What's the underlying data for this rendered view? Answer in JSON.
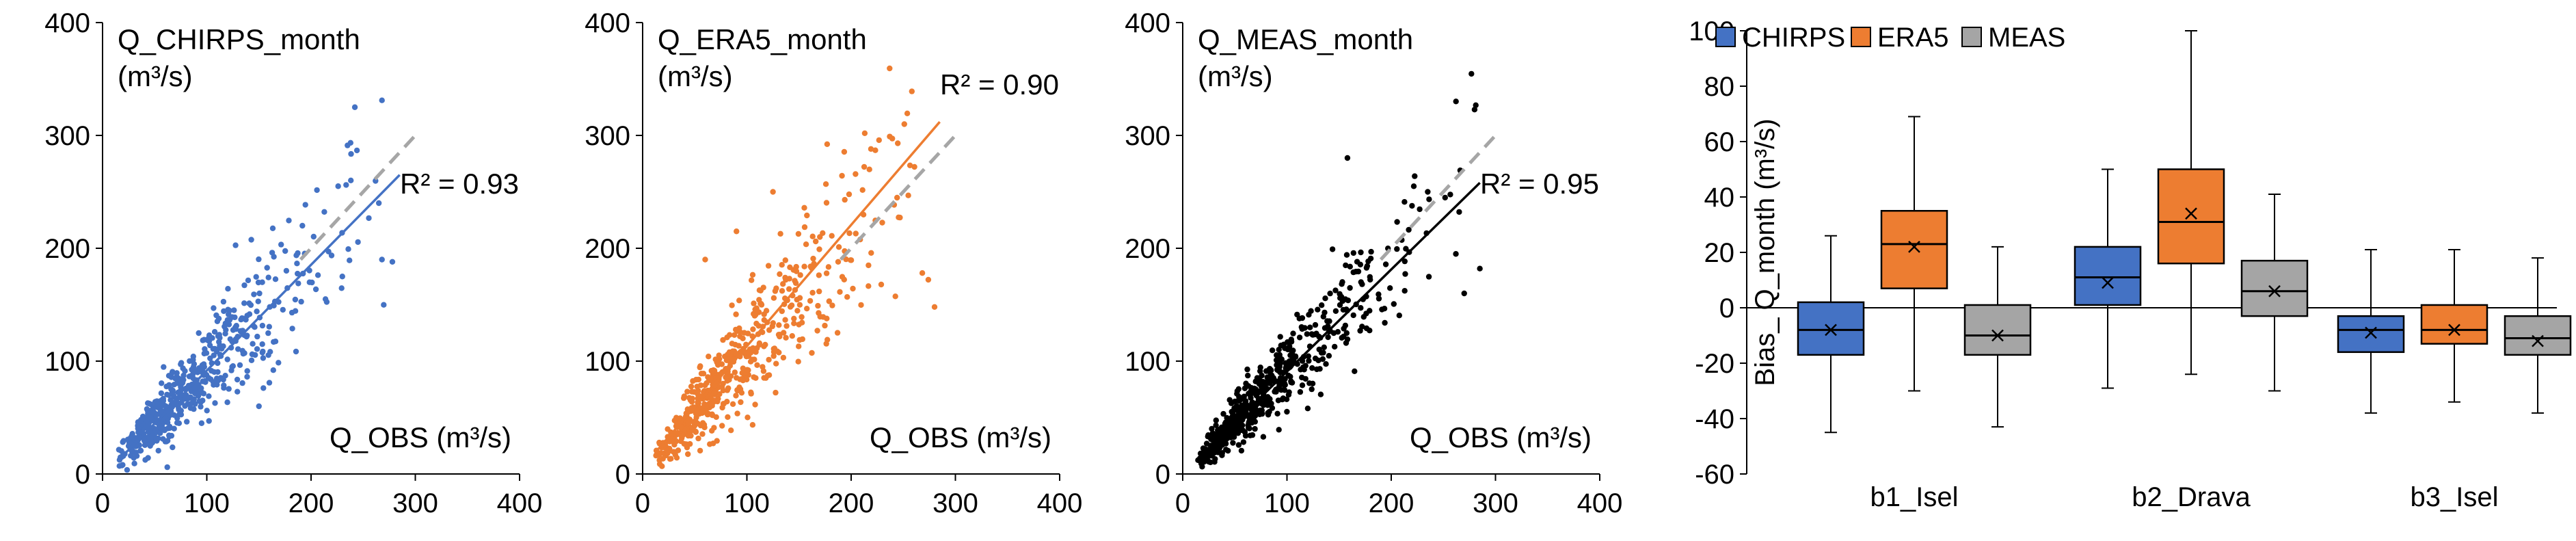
{
  "chart_data": [
    {
      "type": "scatter",
      "title": "Q_CHIRPS_month",
      "ylabel_unit": "(m³/s)",
      "xlabel": "Q_OBS (m³/s)",
      "xlim": [
        0,
        400
      ],
      "ylim": [
        0,
        400
      ],
      "xticks": [
        "0",
        "100",
        "200",
        "300",
        "400"
      ],
      "yticks": [
        "0",
        "100",
        "200",
        "300",
        "400"
      ],
      "color": "#4472C4",
      "r2_label": "R² = 0.93",
      "trend": {
        "x": [
          15,
          285
        ],
        "y": [
          12,
          265
        ]
      },
      "one_to_one": {
        "x": [
          190,
          300
        ],
        "y": [
          190,
          300
        ]
      },
      "cloud": {
        "n": 560,
        "seed": 11,
        "shape": 1.9,
        "scale": 42,
        "cap": 285,
        "slope": 0.92,
        "noise_base": 3,
        "noise_rel": 0.17
      },
      "outliers": {
        "x": [
          242,
          268,
          278,
          230,
          226,
          265,
          150,
          95
        ],
        "y": [
          325,
          190,
          188,
          175,
          255,
          240,
          60,
          45
        ]
      }
    },
    {
      "type": "scatter",
      "title": "Q_ERA5_month",
      "ylabel_unit": "(m³/s)",
      "xlabel": "Q_OBS (m³/s)",
      "xlim": [
        0,
        400
      ],
      "ylim": [
        0,
        400
      ],
      "xticks": [
        "0",
        "100",
        "200",
        "300",
        "400"
      ],
      "yticks": [
        "0",
        "100",
        "200",
        "300",
        "400"
      ],
      "color": "#ED7D31",
      "r2_label": "R² = 0.90",
      "trend": {
        "x": [
          15,
          285
        ],
        "y": [
          22,
          312
        ]
      },
      "one_to_one": {
        "x": [
          190,
          300
        ],
        "y": [
          190,
          300
        ]
      },
      "cloud": {
        "n": 560,
        "seed": 23,
        "shape": 1.9,
        "scale": 42,
        "cap": 285,
        "slope": 1.07,
        "noise_base": 4,
        "noise_rel": 0.2
      },
      "outliers": {
        "x": [
          251,
          237,
          219,
          125,
          170,
          280,
          90,
          60
        ],
        "y": [
          310,
          299,
          288,
          250,
          210,
          148,
          215,
          190
        ]
      }
    },
    {
      "type": "scatter",
      "title": "Q_MEAS_month",
      "ylabel_unit": "(m³/s)",
      "xlabel": "Q_OBS (m³/s)",
      "xlim": [
        0,
        400
      ],
      "ylim": [
        0,
        400
      ],
      "xticks": [
        "0",
        "100",
        "200",
        "300",
        "400"
      ],
      "yticks": [
        "0",
        "100",
        "200",
        "300",
        "400"
      ],
      "color": "#000000",
      "r2_label": "R² = 0.95",
      "trend": {
        "x": [
          15,
          285
        ],
        "y": [
          14,
          258
        ]
      },
      "one_to_one": {
        "x": [
          190,
          300
        ],
        "y": [
          190,
          300
        ]
      },
      "cloud": {
        "n": 560,
        "seed": 37,
        "shape": 1.9,
        "scale": 42,
        "cap": 285,
        "slope": 0.93,
        "noise_base": 3,
        "noise_rel": 0.14
      },
      "outliers": {
        "x": [
          158,
          262,
          270,
          235,
          285
        ],
        "y": [
          280,
          195,
          160,
          250,
          182
        ]
      }
    },
    {
      "type": "boxplot",
      "ylabel": "Bias_ Q_month (m³/s)",
      "ylim": [
        -60,
        100
      ],
      "yticks": [
        "-60",
        "-40",
        "-20",
        "0",
        "20",
        "40",
        "60",
        "80",
        "100"
      ],
      "categories": [
        "b1_Isel",
        "b2_Drava",
        "b3_Isel"
      ],
      "series": [
        {
          "name": "CHIRPS",
          "color": "#4472C4",
          "boxes": [
            {
              "min": -45,
              "q1": -17,
              "median": -8,
              "q3": 2,
              "max": 26,
              "mean": -8
            },
            {
              "min": -29,
              "q1": 1,
              "median": 11,
              "q3": 22,
              "max": 50,
              "mean": 9
            },
            {
              "min": -38,
              "q1": -16,
              "median": -8,
              "q3": -3,
              "max": 21,
              "mean": -9
            }
          ]
        },
        {
          "name": "ERA5",
          "color": "#ED7D31",
          "boxes": [
            {
              "min": -30,
              "q1": 7,
              "median": 23,
              "q3": 35,
              "max": 69,
              "mean": 22
            },
            {
              "min": -24,
              "q1": 16,
              "median": 31,
              "q3": 50,
              "max": 100,
              "mean": 34
            },
            {
              "min": -34,
              "q1": -13,
              "median": -8,
              "q3": 1,
              "max": 21,
              "mean": -8
            }
          ]
        },
        {
          "name": "MEAS",
          "color": "#A5A5A5",
          "boxes": [
            {
              "min": -43,
              "q1": -17,
              "median": -10,
              "q3": 1,
              "max": 22,
              "mean": -10
            },
            {
              "min": -30,
              "q1": -3,
              "median": 6,
              "q3": 17,
              "max": 41,
              "mean": 6
            },
            {
              "min": -38,
              "q1": -17,
              "median": -11,
              "q3": -3,
              "max": 18,
              "mean": -12
            }
          ]
        }
      ]
    }
  ]
}
